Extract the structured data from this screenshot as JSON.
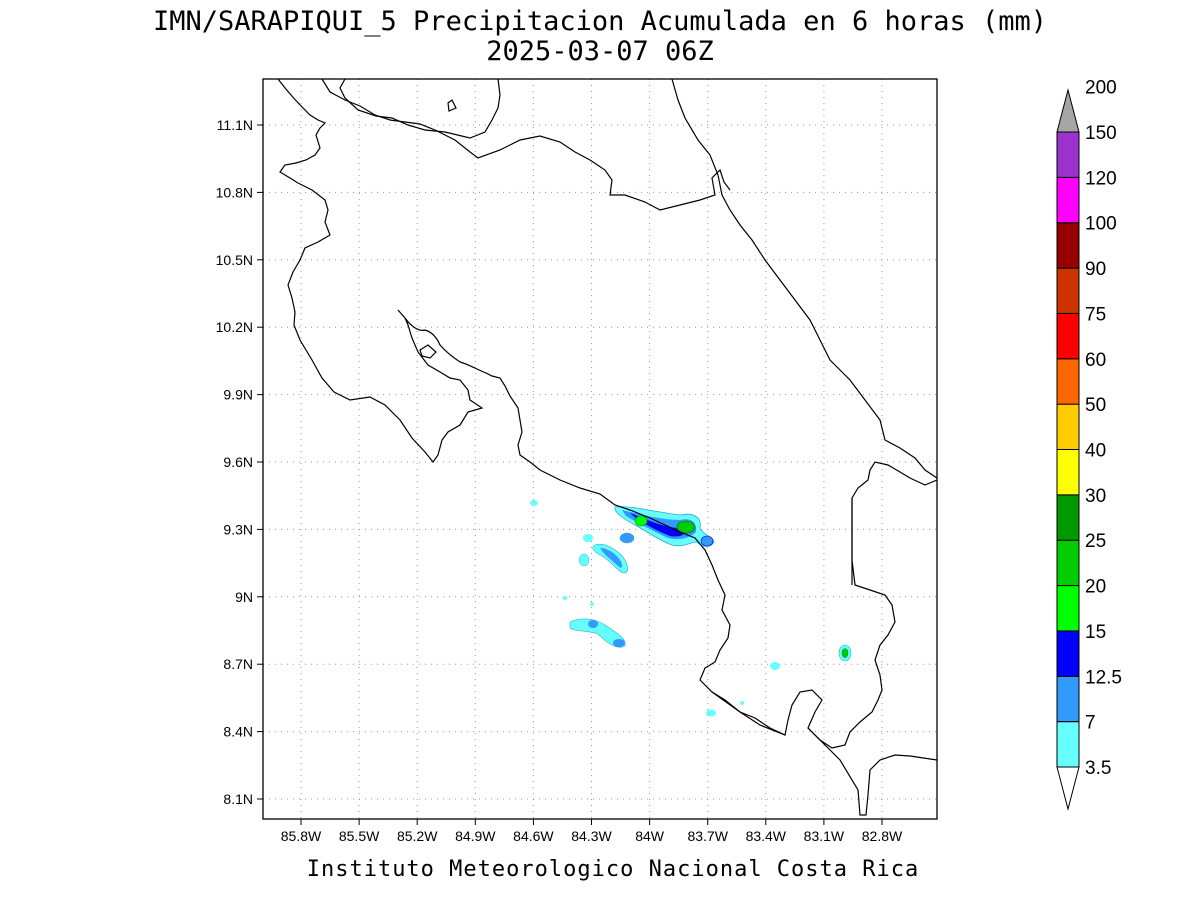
{
  "map": {
    "title": "IMN/SARAPIQUI_5 Precipitacion Acumulada en 6 horas (mm)",
    "subtitle": "2025-03-07 06Z",
    "credit": "Instituto Meteorologico Nacional Costa Rica",
    "lat_ticks": [
      "11.1N",
      "10.8N",
      "10.5N",
      "10.2N",
      "9.9N",
      "9.6N",
      "9.3N",
      "9N",
      "8.7N",
      "8.4N",
      "8.1N"
    ],
    "lon_ticks": [
      "85.8W",
      "85.5W",
      "85.2W",
      "84.9W",
      "84.6W",
      "84.3W",
      "84W",
      "83.7W",
      "83.4W",
      "83.1W",
      "82.8W"
    ],
    "grid": true,
    "colorbar": {
      "levels": [
        "3.5",
        "7",
        "12.5",
        "15",
        "20",
        "25",
        "30",
        "40",
        "50",
        "60",
        "75",
        "90",
        "100",
        "120",
        "150",
        "200"
      ],
      "colors": [
        "#66ffff",
        "#3399ff",
        "#0000ff",
        "#00ff00",
        "#00cc00",
        "#009900",
        "#ffff00",
        "#ffcc00",
        "#ff6600",
        "#ff0000",
        "#cc3300",
        "#990000",
        "#ff00ff",
        "#9933cc",
        "#f2f2f2",
        "#a6a6a6"
      ]
    }
  }
}
